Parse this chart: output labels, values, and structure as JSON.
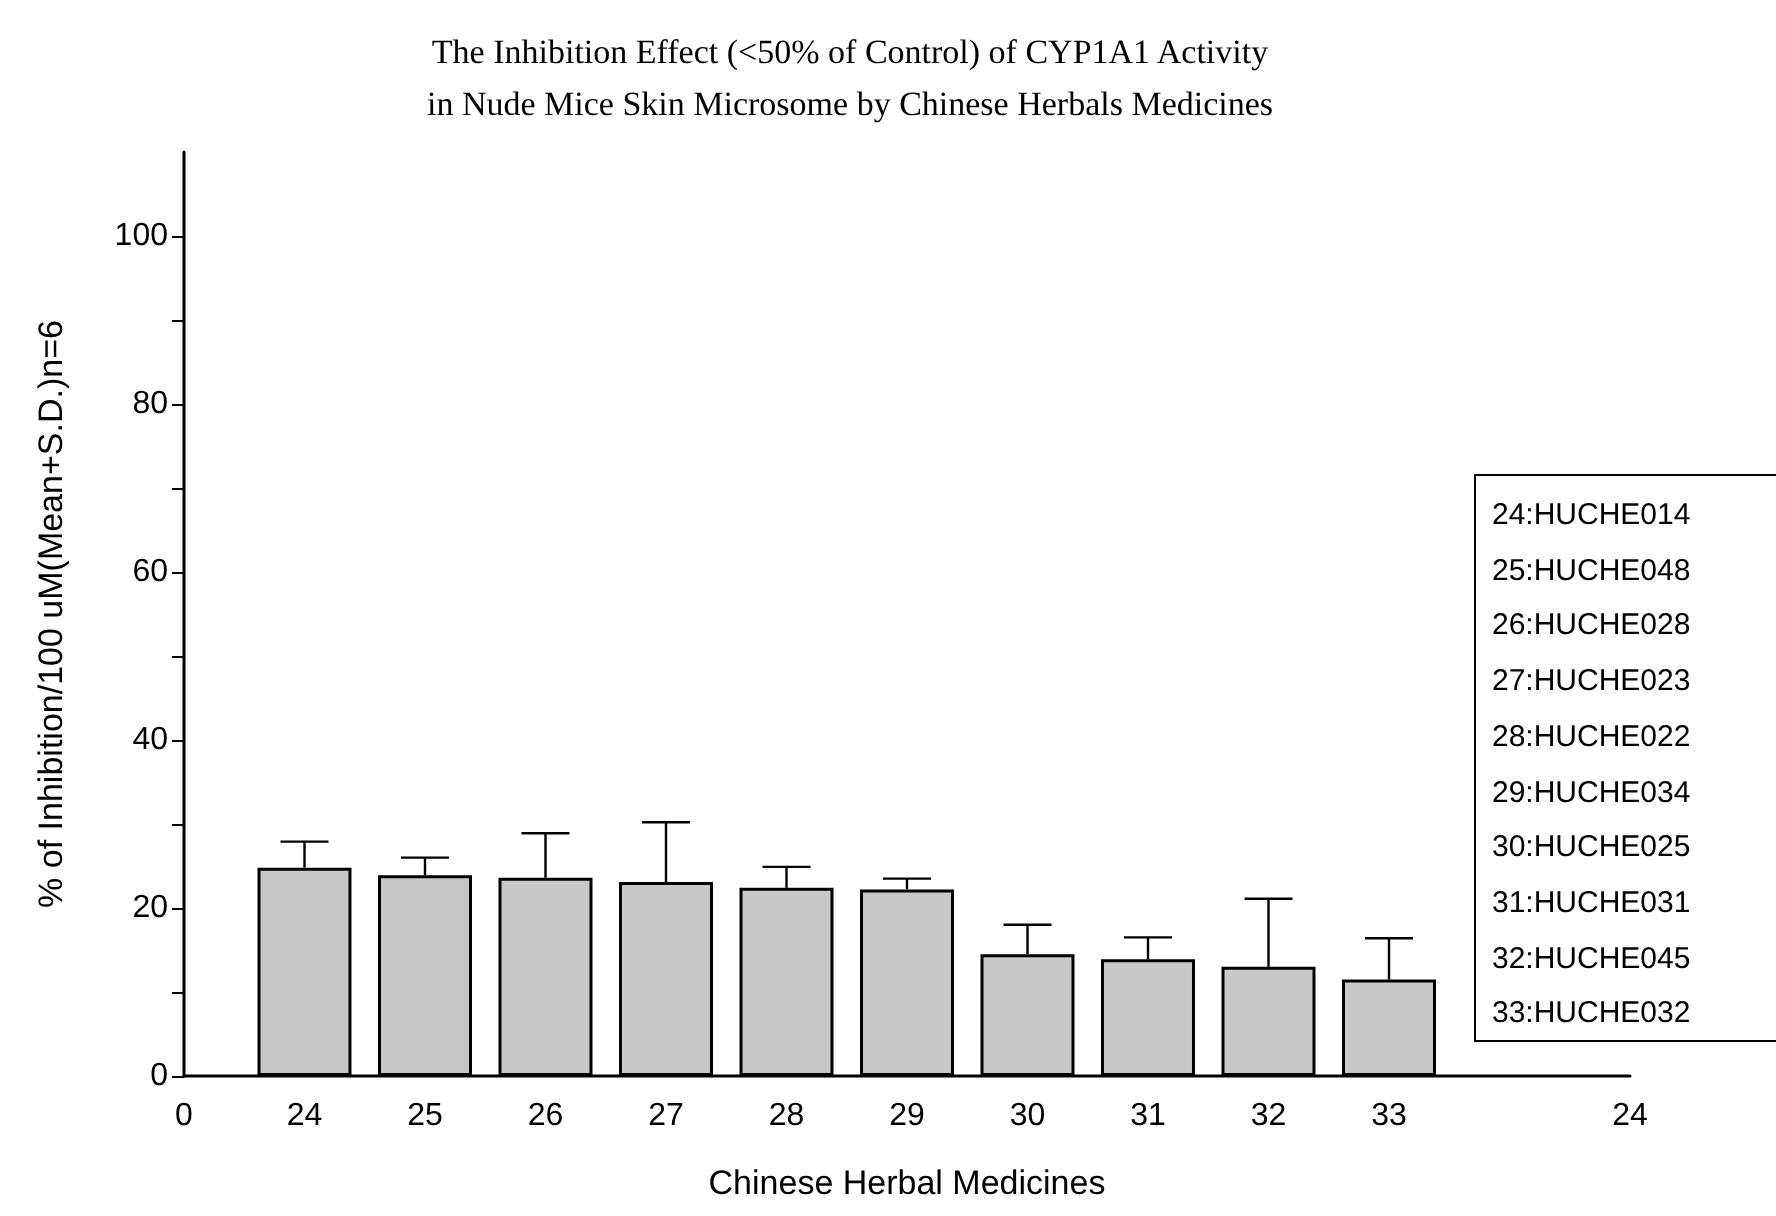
{
  "chart_data": {
    "type": "bar",
    "title": "The Inhibition Effect (<50% of Control) of CYP1A1 Activity\nin Nude Mice Skin Microsome by Chinese Herbals Medicines",
    "xlabel": "Chinese Herbal Medicines",
    "ylabel": "% of Inhibition/100 uM(Mean+S.D.)n=6",
    "categories": [
      "0",
      "24",
      "25",
      "26",
      "27",
      "28",
      "29",
      "30",
      "31",
      "32",
      "33",
      null,
      "24"
    ],
    "values": [
      null,
      24.8,
      23.9,
      23.6,
      23.1,
      22.4,
      22.2,
      14.5,
      13.9,
      13.0,
      11.5,
      null,
      null
    ],
    "errors": [
      null,
      [
        24.8,
        27.9
      ],
      [
        23.9,
        26.0
      ],
      [
        23.6,
        28.9
      ],
      [
        23.1,
        30.2
      ],
      [
        22.4,
        24.9
      ],
      [
        22.2,
        23.5
      ],
      [
        14.5,
        18.0
      ],
      [
        13.9,
        16.5
      ],
      [
        13.0,
        21.1
      ],
      [
        11.5,
        16.4
      ],
      null,
      null
    ],
    "color": "#c8c8c8",
    "ylim": [
      0,
      110
    ],
    "yticks": [
      0,
      {
        "value": 10,
        "label": null
      },
      20,
      {
        "value": 30,
        "label": null
      },
      40,
      {
        "value": 50,
        "label": null
      },
      60,
      {
        "value": 70,
        "label": null
      },
      80,
      {
        "value": 90,
        "label": null
      },
      100
    ],
    "annotations": [
      "24:HUCHE014",
      "25:HUCHE048",
      "26:HUCHE028",
      "27:HUCHE023",
      "28:HUCHE022",
      "29:HUCHE034",
      "30:HUCHE025",
      "31:HUCHE031",
      "32:HUCHE045",
      "33:HUCHE032"
    ],
    "grid": false
  }
}
